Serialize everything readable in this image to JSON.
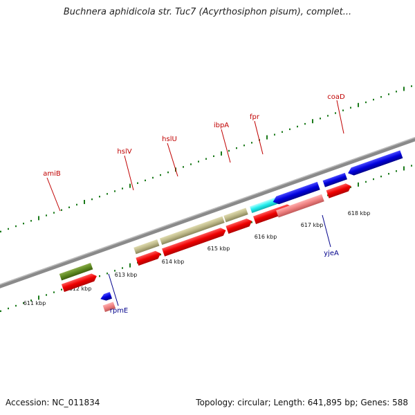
{
  "title": "Buchnera aphidicola str. Tuc7 (Acyrthosiphon pisum), complet...",
  "accession": "Accession: NC_011834",
  "summary": "Topology: circular; Length: 641,895 bp; Genes: 588",
  "colors": {
    "label_upper": "#c00000",
    "label_lower": "#00008b",
    "backbone": "#8a8a8a",
    "tick": "#1a7a1a"
  },
  "scale_labels": [
    "611 kbp",
    "612 kbp",
    "613 kbp",
    "614 kbp",
    "615 kbp",
    "616 kbp",
    "617 kbp",
    "618 kbp"
  ],
  "genes": [
    {
      "name": "amiB",
      "strand": "forward"
    },
    {
      "name": "hslV",
      "strand": "forward"
    },
    {
      "name": "hslU",
      "strand": "forward"
    },
    {
      "name": "ibpA",
      "strand": "forward"
    },
    {
      "name": "fpr",
      "strand": "forward"
    },
    {
      "name": "coaD",
      "strand": "forward"
    },
    {
      "name": "rpmE",
      "strand": "reverse"
    },
    {
      "name": "yjeA",
      "strand": "reverse"
    }
  ]
}
